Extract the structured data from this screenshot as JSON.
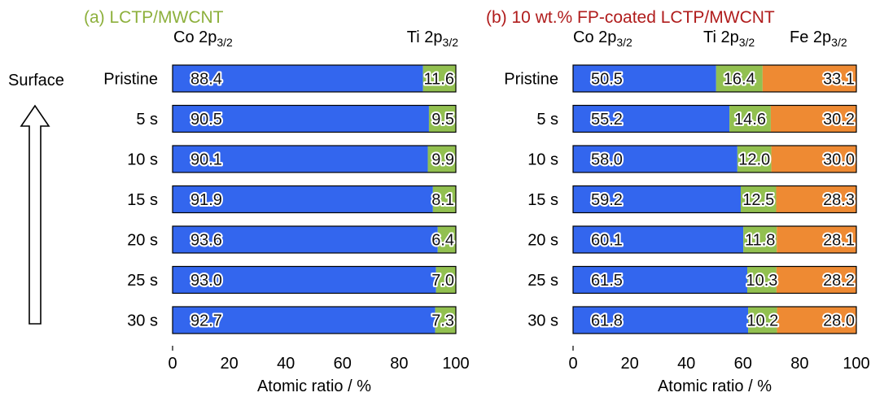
{
  "surface_label": "Surface",
  "colors": {
    "Co": "#3366ee",
    "Ti": "#92c050",
    "Fe": "#ee8a33",
    "title_a": "#8db03c",
    "title_b": "#b01c1c"
  },
  "chart_data": [
    {
      "type": "bar",
      "orientation": "horizontal",
      "stacked": true,
      "title": "(a) LCTP/MWCNT",
      "xlabel": "Atomic ratio / %",
      "ylabel": "",
      "xlim": [
        0,
        100
      ],
      "xticks": [
        0,
        20,
        40,
        60,
        80,
        100
      ],
      "categories": [
        "Pristine",
        "5 s",
        "10 s",
        "15 s",
        "20 s",
        "25 s",
        "30 s"
      ],
      "series": [
        {
          "name": "Co 2p3/2",
          "element": "Co",
          "label_base": "Co 2p",
          "label_sub": "3/2",
          "values": [
            88.4,
            90.5,
            90.1,
            91.9,
            93.6,
            93.0,
            92.7
          ]
        },
        {
          "name": "Ti 2p3/2",
          "element": "Ti",
          "label_base": "Ti 2p",
          "label_sub": "3/2",
          "values": [
            11.6,
            9.5,
            9.9,
            8.1,
            6.4,
            7.0,
            7.3
          ]
        }
      ]
    },
    {
      "type": "bar",
      "orientation": "horizontal",
      "stacked": true,
      "title": "(b) 10 wt.% FP-coated LCTP/MWCNT",
      "xlabel": "Atomic ratio / %",
      "ylabel": "",
      "xlim": [
        0,
        100
      ],
      "xticks": [
        0,
        20,
        40,
        60,
        80,
        100
      ],
      "categories": [
        "Pristine",
        "5 s",
        "10 s",
        "15 s",
        "20 s",
        "25 s",
        "30 s"
      ],
      "series": [
        {
          "name": "Co 2p3/2",
          "element": "Co",
          "label_base": "Co 2p",
          "label_sub": "3/2",
          "values": [
            50.5,
            55.2,
            58.0,
            59.2,
            60.1,
            61.5,
            61.8
          ]
        },
        {
          "name": "Ti 2p3/2",
          "element": "Ti",
          "label_base": "Ti 2p",
          "label_sub": "3/2",
          "values": [
            16.4,
            14.6,
            12.0,
            12.5,
            11.8,
            10.3,
            10.2
          ]
        },
        {
          "name": "Fe 2p3/2",
          "element": "Fe",
          "label_base": "Fe 2p",
          "label_sub": "3/2",
          "values": [
            33.1,
            30.2,
            30.0,
            28.3,
            28.1,
            28.2,
            28.0
          ]
        }
      ]
    }
  ]
}
